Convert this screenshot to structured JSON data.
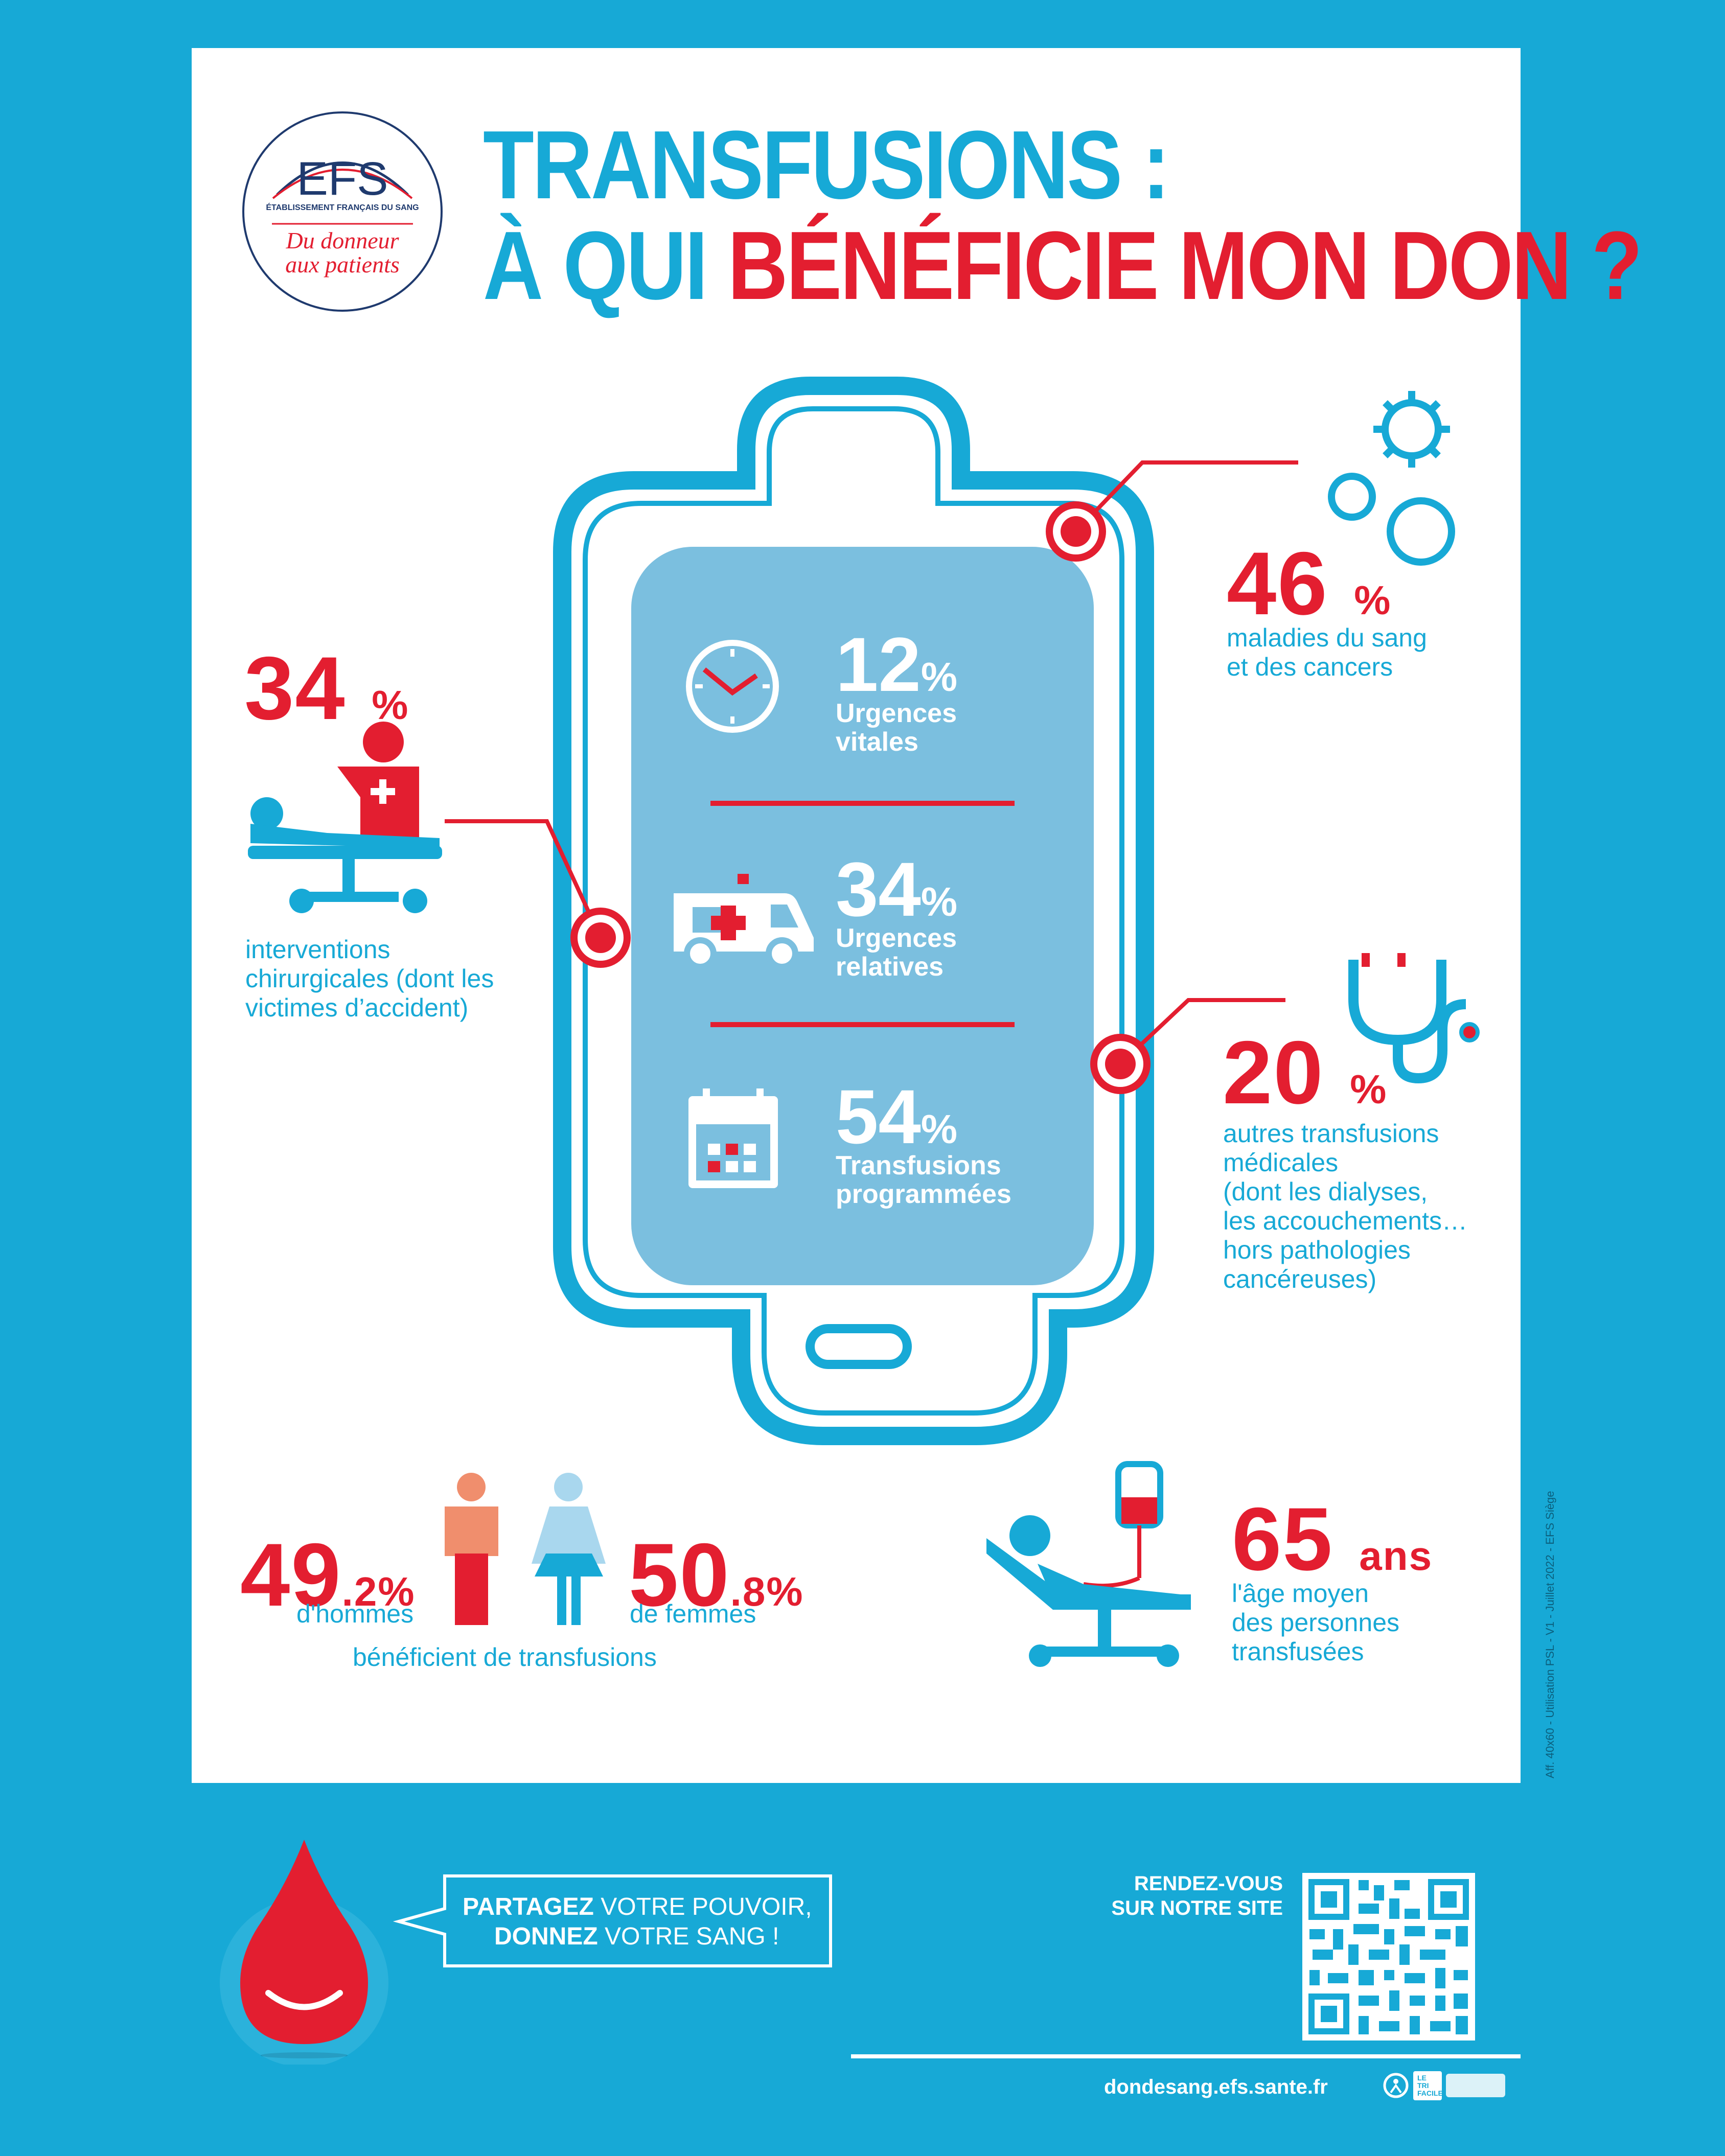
{
  "logo": {
    "brand": "EFS",
    "subtitle": "ÉTABLISSEMENT FRANÇAIS DU SANG",
    "tagline_line1": "Du donneur",
    "tagline_line2": "aux patients"
  },
  "title": {
    "line1": "TRANSFUSIONS :",
    "line2_blue": "À QUI",
    "line2_red": "BÉNÉFICIE MON DON ?"
  },
  "bag": {
    "items": [
      {
        "value": "12",
        "unit": "%",
        "label_line1": "Urgences",
        "label_line2": "vitales",
        "icon": "clock-icon"
      },
      {
        "value": "34",
        "unit": "%",
        "label_line1": "Urgences",
        "label_line2": "relatives",
        "icon": "ambulance-icon"
      },
      {
        "value": "54",
        "unit": "%",
        "label_line1": "Transfusions",
        "label_line2": "programmées",
        "icon": "calendar-icon"
      }
    ]
  },
  "stats": {
    "blood_cancer": {
      "value": "46",
      "unit": "%",
      "desc_line1": "maladies du sang",
      "desc_line2": "et des cancers",
      "icon": "virus-icon"
    },
    "surgery": {
      "value": "34",
      "unit": "%",
      "desc_line1": "interventions",
      "desc_line2": "chirurgicales (dont les",
      "desc_line3": "victimes d’accident)",
      "icon": "surgery-icon"
    },
    "other_medical": {
      "value": "20",
      "unit": "%",
      "desc_line1": "autres transfusions",
      "desc_line2": "médicales",
      "desc_line3": "(dont les dialyses,",
      "desc_line4": "les accouchements…",
      "desc_line5": "hors pathologies",
      "desc_line6": "cancéreuses)",
      "icon": "stethoscope-icon"
    }
  },
  "gender": {
    "men_value": "49",
    "men_decimal": ".2%",
    "men_label": "d'hommes",
    "women_value": "50",
    "women_decimal": ".8%",
    "women_label": "de femmes",
    "caption": "bénéficient de transfusions"
  },
  "age": {
    "value": "65",
    "unit": "ans",
    "desc_line1": "l'âge moyen",
    "desc_line2": "des personnes",
    "desc_line3": "transfusées"
  },
  "footer": {
    "bubble_bold1": "PARTAGEZ",
    "bubble_rest1": " VOTRE POUVOIR,",
    "bubble_bold2": "DONNEZ",
    "bubble_rest2": " VOTRE SANG !",
    "site_line1": "RENDEZ-VOUS",
    "site_line2": "SUR NOTRE SITE",
    "url": "dondesang.efs.sante.fr",
    "tri_label": "LE TRI FACILE",
    "side_note": "Aff. 40x60 - Utilisation PSL - V1 - Juillet 2022 - EFS Siège"
  },
  "colors": {
    "blue": "#17a9d6",
    "red": "#e31e30",
    "bag_inner": "#7bbfdf"
  }
}
